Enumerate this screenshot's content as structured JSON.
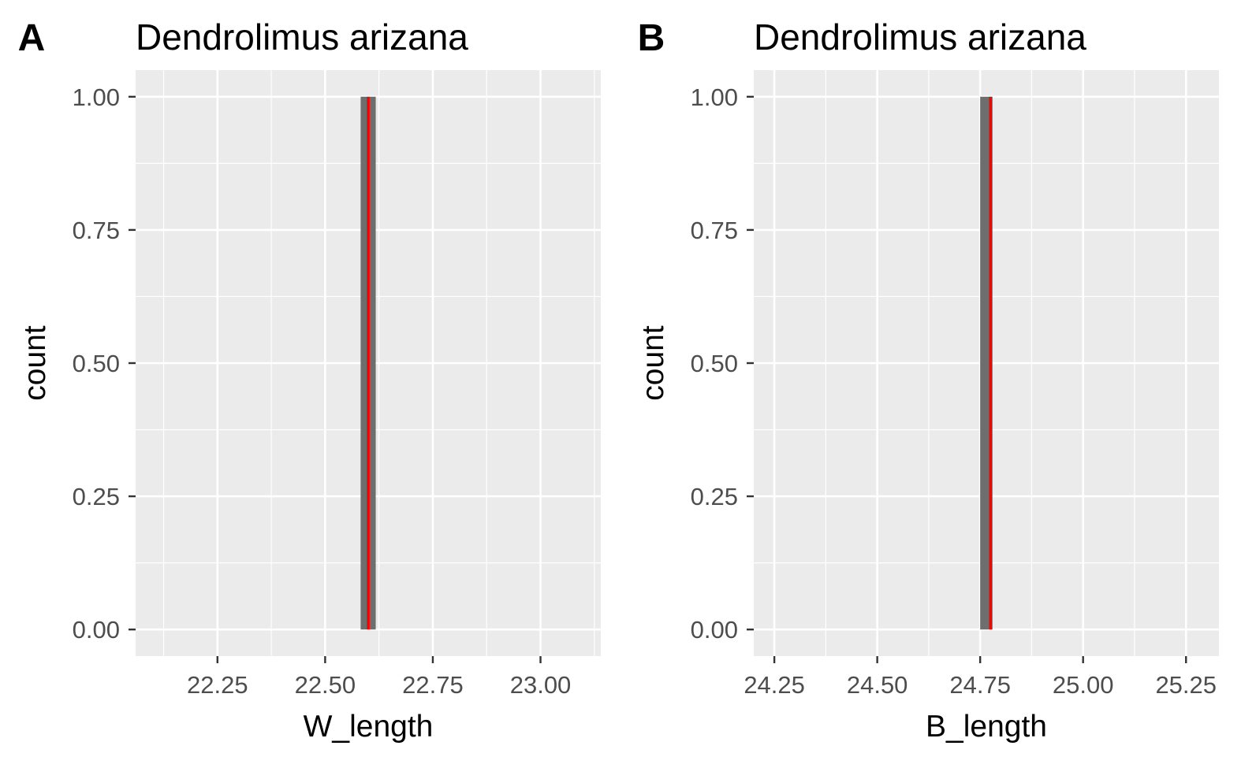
{
  "figure": {
    "background": "#ffffff",
    "panel_background": "#ebebeb",
    "grid_color": "#ffffff",
    "bar_color": "#6e6e6e",
    "line_color": "#ff0000",
    "tick_text_color": "#4d4d4d",
    "title_color": "#000000"
  },
  "chart_data": [
    {
      "panel_tag": "A",
      "type": "bar",
      "title": "Dendrolimus arizana",
      "xlabel": "W_length",
      "ylabel": "count",
      "xlim": [
        22.06,
        23.14
      ],
      "ylim": [
        -0.05,
        1.05
      ],
      "xticks": [
        22.25,
        22.5,
        22.75,
        23.0
      ],
      "xtick_labels": [
        "22.25",
        "22.50",
        "22.75",
        "23.00"
      ],
      "yticks": [
        0,
        0.25,
        0.5,
        0.75,
        1.0
      ],
      "ytick_labels": [
        "0.00",
        "0.25",
        "0.50",
        "0.75",
        "1.00"
      ],
      "grid": true,
      "bars": [
        {
          "x": 22.6,
          "width": 0.035,
          "count": 1
        }
      ],
      "vline": {
        "x": 22.6
      }
    },
    {
      "panel_tag": "B",
      "type": "bar",
      "title": "Dendrolimus arizana",
      "xlabel": "B_length",
      "ylabel": "count",
      "xlim": [
        24.2,
        25.33
      ],
      "ylim": [
        -0.05,
        1.05
      ],
      "xticks": [
        24.25,
        24.5,
        24.75,
        25.0,
        25.25
      ],
      "xtick_labels": [
        "24.25",
        "24.50",
        "24.75",
        "25.00",
        "25.25"
      ],
      "yticks": [
        0,
        0.25,
        0.5,
        0.75,
        1.0
      ],
      "ytick_labels": [
        "0.00",
        "0.25",
        "0.50",
        "0.75",
        "1.00"
      ],
      "grid": true,
      "bars": [
        {
          "x": 24.765,
          "width": 0.03,
          "count": 1
        }
      ],
      "vline": {
        "x": 24.775
      }
    }
  ]
}
